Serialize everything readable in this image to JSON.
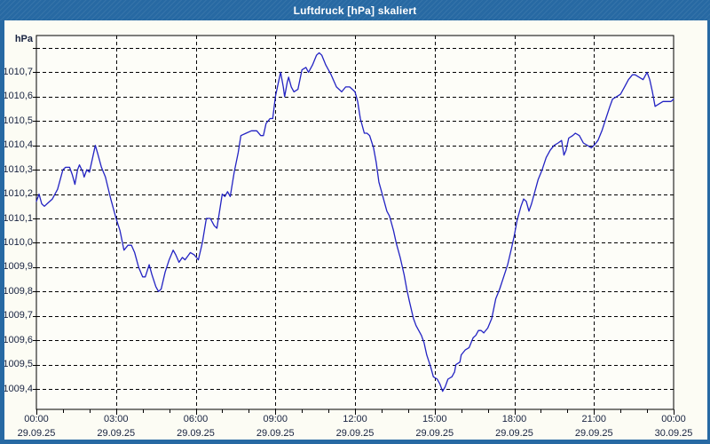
{
  "window": {
    "title": "Luftdruck [hPa] skaliert"
  },
  "colors": {
    "titlebar_bg": "#2769a3",
    "titlebar_text": "#ffffff",
    "window_bg": "#fcfcf4",
    "border": "#2769a3",
    "plot_bg": "#fdfdf8",
    "axis": "#000000",
    "grid": "#000000",
    "line": "#2323c3",
    "label_text": "#17223f"
  },
  "chart": {
    "unit_label": "hPa",
    "y_ticks": [
      {
        "value": 1010.8,
        "label": ""
      },
      {
        "value": 1010.7,
        "label": "1010,7"
      },
      {
        "value": 1010.6,
        "label": "1010,6"
      },
      {
        "value": 1010.5,
        "label": "1010,5"
      },
      {
        "value": 1010.4,
        "label": "1010,4"
      },
      {
        "value": 1010.3,
        "label": "1010,3"
      },
      {
        "value": 1010.2,
        "label": "1010,2"
      },
      {
        "value": 1010.1,
        "label": "1010,1"
      },
      {
        "value": 1010.0,
        "label": "1010,0"
      },
      {
        "value": 1009.9,
        "label": "1009,9"
      },
      {
        "value": 1009.8,
        "label": "1009,8"
      },
      {
        "value": 1009.7,
        "label": "1009,7"
      },
      {
        "value": 1009.6,
        "label": "1009,6"
      },
      {
        "value": 1009.5,
        "label": "1009,5"
      },
      {
        "value": 1009.4,
        "label": "1009,4"
      }
    ],
    "x_ticks": [
      {
        "hour": 0,
        "time": "00:00",
        "date": "29.09.25"
      },
      {
        "hour": 3,
        "time": "03:00",
        "date": "29.09.25"
      },
      {
        "hour": 6,
        "time": "06:00",
        "date": "29.09.25"
      },
      {
        "hour": 9,
        "time": "09:00",
        "date": "29.09.25"
      },
      {
        "hour": 12,
        "time": "12:00",
        "date": "29.09.25"
      },
      {
        "hour": 15,
        "time": "15:00",
        "date": "29.09.25"
      },
      {
        "hour": 18,
        "time": "18:00",
        "date": "29.09.25"
      },
      {
        "hour": 21,
        "time": "21:00",
        "date": "29.09.25"
      },
      {
        "hour": 24,
        "time": "00:00",
        "date": "30.09.25"
      }
    ],
    "minor_tick_hours": 1
  },
  "chart_data": {
    "type": "line",
    "title": "Luftdruck [hPa] skaliert",
    "ylabel": "hPa",
    "ylim": [
      1009.4,
      1010.8
    ],
    "xlim_hours": [
      0,
      24
    ],
    "x_tick_interval_hours": 3,
    "grid": true,
    "legend": "none",
    "series": [
      {
        "name": "Luftdruck",
        "x_hours": [
          0,
          0.1,
          0.2,
          0.3,
          0.4,
          0.6,
          0.8,
          1.0,
          1.1,
          1.25,
          1.35,
          1.45,
          1.55,
          1.62,
          1.75,
          1.8,
          1.9,
          2.0,
          2.1,
          2.22,
          2.3,
          2.45,
          2.6,
          2.8,
          3.0,
          3.15,
          3.3,
          3.45,
          3.58,
          3.7,
          3.85,
          4.0,
          4.1,
          4.25,
          4.35,
          4.5,
          4.6,
          4.7,
          4.85,
          5.0,
          5.15,
          5.25,
          5.37,
          5.5,
          5.6,
          5.8,
          5.95,
          6.1,
          6.25,
          6.4,
          6.55,
          6.7,
          6.8,
          7.0,
          7.1,
          7.2,
          7.3,
          7.45,
          7.6,
          7.7,
          7.9,
          8.1,
          8.3,
          8.45,
          8.55,
          8.65,
          8.8,
          8.9,
          9.0,
          9.1,
          9.2,
          9.3,
          9.35,
          9.45,
          9.5,
          9.6,
          9.7,
          9.85,
          10.0,
          10.15,
          10.25,
          10.4,
          10.55,
          10.65,
          10.75,
          10.9,
          11.1,
          11.3,
          11.5,
          11.65,
          11.8,
          12.0,
          12.1,
          12.2,
          12.35,
          12.45,
          12.55,
          12.7,
          12.8,
          12.9,
          13.0,
          13.1,
          13.2,
          13.3,
          13.45,
          13.55,
          13.7,
          13.85,
          13.95,
          14.05,
          14.2,
          14.3,
          14.4,
          14.5,
          14.6,
          14.7,
          14.85,
          14.95,
          15.1,
          15.2,
          15.3,
          15.4,
          15.5,
          15.65,
          15.75,
          15.8,
          15.95,
          16.0,
          16.15,
          16.3,
          16.45,
          16.55,
          16.65,
          16.75,
          16.85,
          17.0,
          17.15,
          17.3,
          17.45,
          17.6,
          17.75,
          17.9,
          18.0,
          18.1,
          18.25,
          18.35,
          18.45,
          18.55,
          18.65,
          18.75,
          18.9,
          19.05,
          19.2,
          19.35,
          19.5,
          19.65,
          19.78,
          19.87,
          19.95,
          20.05,
          20.2,
          20.3,
          20.45,
          20.6,
          20.75,
          20.9,
          21.0,
          21.15,
          21.3,
          21.45,
          21.6,
          21.7,
          21.85,
          22.0,
          22.15,
          22.3,
          22.45,
          22.55,
          22.7,
          22.85,
          23.0,
          23.1,
          23.2,
          23.3,
          23.45,
          23.6,
          23.75,
          23.9,
          24.0
        ],
        "values": [
          1010.17,
          1010.2,
          1010.16,
          1010.15,
          1010.16,
          1010.18,
          1010.22,
          1010.3,
          1010.31,
          1010.31,
          1010.28,
          1010.24,
          1010.3,
          1010.32,
          1010.29,
          1010.27,
          1010.3,
          1010.29,
          1010.34,
          1010.4,
          1010.37,
          1010.31,
          1010.27,
          1010.18,
          1010.1,
          1010.05,
          1009.97,
          1009.99,
          1009.99,
          1009.96,
          1009.9,
          1009.86,
          1009.86,
          1009.91,
          1009.87,
          1009.82,
          1009.8,
          1009.81,
          1009.88,
          1009.93,
          1009.97,
          1009.95,
          1009.92,
          1009.94,
          1009.93,
          1009.96,
          1009.95,
          1009.93,
          1010.0,
          1010.1,
          1010.1,
          1010.07,
          1010.06,
          1010.2,
          1010.19,
          1010.21,
          1010.19,
          1010.29,
          1010.37,
          1010.44,
          1010.45,
          1010.46,
          1010.46,
          1010.44,
          1010.44,
          1010.49,
          1010.51,
          1010.51,
          1010.6,
          1010.65,
          1010.7,
          1010.64,
          1010.6,
          1010.66,
          1010.68,
          1010.64,
          1010.62,
          1010.63,
          1010.71,
          1010.72,
          1010.7,
          1010.73,
          1010.77,
          1010.78,
          1010.77,
          1010.73,
          1010.69,
          1010.64,
          1010.62,
          1010.64,
          1010.64,
          1010.62,
          1010.58,
          1010.51,
          1010.45,
          1010.45,
          1010.44,
          1010.39,
          1010.33,
          1010.25,
          1010.21,
          1010.17,
          1010.13,
          1010.11,
          1010.05,
          1010.0,
          1009.94,
          1009.87,
          1009.81,
          1009.76,
          1009.69,
          1009.66,
          1009.64,
          1009.62,
          1009.59,
          1009.54,
          1009.49,
          1009.45,
          1009.44,
          1009.42,
          1009.39,
          1009.41,
          1009.44,
          1009.45,
          1009.47,
          1009.5,
          1009.51,
          1009.54,
          1009.56,
          1009.57,
          1009.61,
          1009.62,
          1009.64,
          1009.64,
          1009.63,
          1009.65,
          1009.69,
          1009.77,
          1009.81,
          1009.86,
          1009.91,
          1009.98,
          1010.03,
          1010.09,
          1010.15,
          1010.18,
          1010.17,
          1010.13,
          1010.16,
          1010.2,
          1010.26,
          1010.3,
          1010.35,
          1010.38,
          1010.4,
          1010.41,
          1010.42,
          1010.36,
          1010.38,
          1010.43,
          1010.44,
          1010.45,
          1010.44,
          1010.41,
          1010.4,
          1010.39,
          1010.4,
          1010.42,
          1010.46,
          1010.51,
          1010.56,
          1010.59,
          1010.6,
          1010.61,
          1010.64,
          1010.67,
          1010.69,
          1010.69,
          1010.68,
          1010.67,
          1010.7,
          1010.67,
          1010.62,
          1010.56,
          1010.57,
          1010.58,
          1010.58,
          1010.58,
          1010.59
        ]
      }
    ]
  }
}
